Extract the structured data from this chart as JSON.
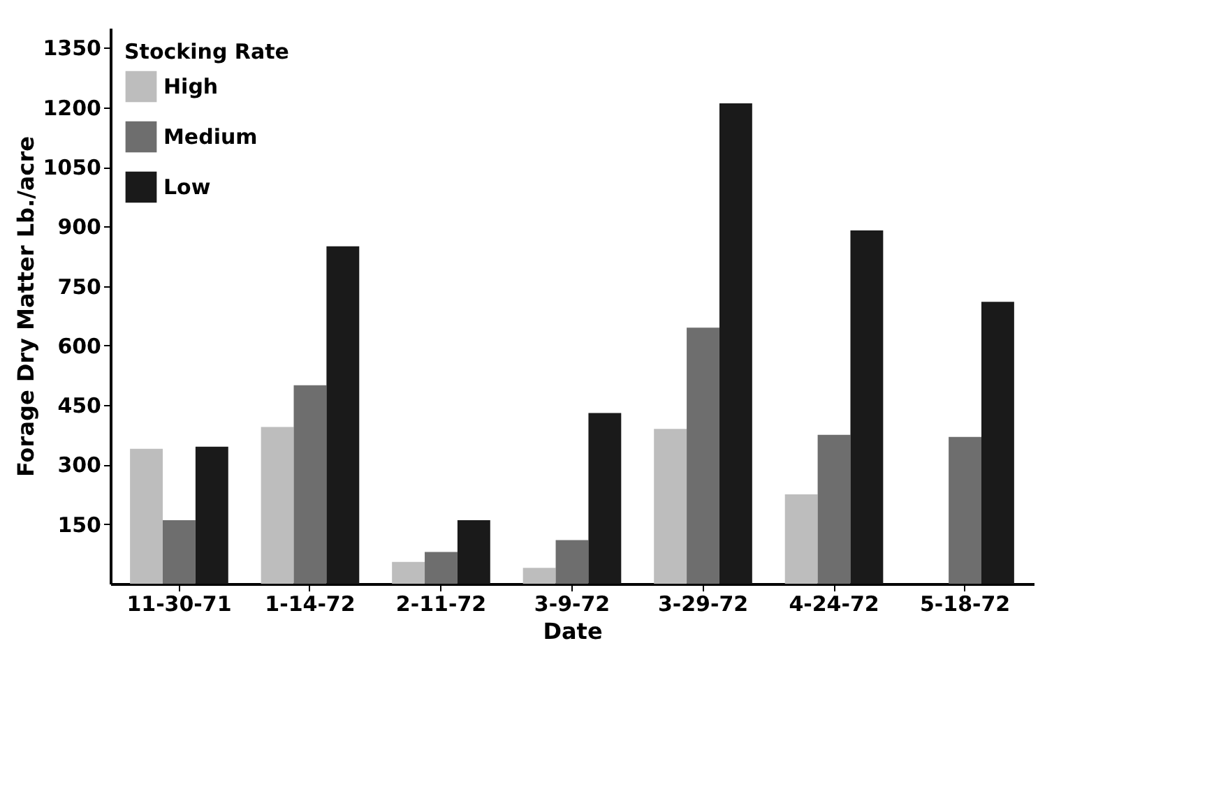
{
  "chart_data": {
    "type": "bar",
    "xlabel": "Date",
    "ylabel": "Forage Dry Matter  Lb./acre",
    "legend_title": "Stocking Rate",
    "categories": [
      "11-30-71",
      "1-14-72",
      "2-11-72",
      "3-9-72",
      "3-29-72",
      "4-24-72",
      "5-18-72"
    ],
    "series": [
      {
        "name": "High",
        "color": "#bdbdbd",
        "values": [
          340,
          395,
          55,
          40,
          390,
          225,
          null
        ]
      },
      {
        "name": "Medium",
        "color": "#6e6e6e",
        "values": [
          160,
          500,
          80,
          110,
          645,
          375,
          370
        ]
      },
      {
        "name": "Low",
        "color": "#1a1a1a",
        "values": [
          345,
          850,
          160,
          430,
          1210,
          890,
          710
        ]
      }
    ],
    "ylim": [
      0,
      1400
    ],
    "yticks": [
      150,
      300,
      450,
      600,
      750,
      900,
      1050,
      1200,
      1350
    ],
    "grid": false,
    "legend": "top left"
  }
}
